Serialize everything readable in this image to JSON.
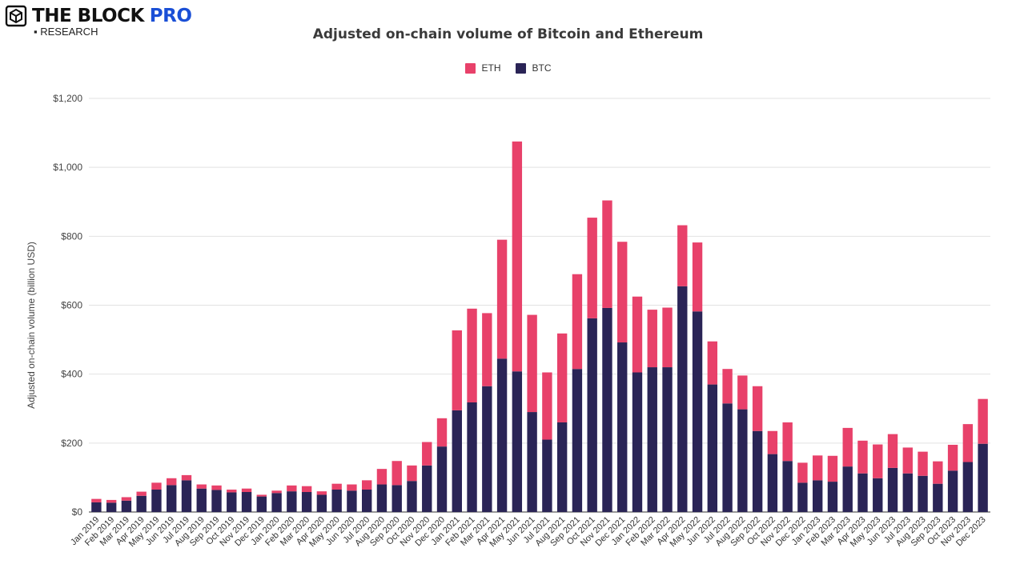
{
  "logo": {
    "name": "THE BLOCK",
    "pro": "PRO",
    "sub": "▪ RESEARCH",
    "icon": "cube-logo-icon"
  },
  "colors": {
    "eth": "#E8416A",
    "btc": "#2A2456",
    "grid": "#e2e2e2",
    "axis": "#333333"
  },
  "chart_data": {
    "type": "bar",
    "stacked": true,
    "title": "Adjusted on-chain volume of Bitcoin and Ethereum",
    "ylabel": "Adjusted on-chain volume (billion USD)",
    "xlabel": "",
    "ylim": [
      0,
      1200
    ],
    "yticks": [
      0,
      200,
      400,
      600,
      800,
      1000,
      1200
    ],
    "ytick_labels": [
      "$0",
      "$200",
      "$400",
      "$600",
      "$800",
      "$1,000",
      "$1,200"
    ],
    "grid": true,
    "legend_position": "top-center",
    "legend": [
      "ETH",
      "BTC"
    ],
    "categories": [
      "Jan 2019",
      "Feb 2019",
      "Mar 2019",
      "Apr 2019",
      "May 2019",
      "Jun 2019",
      "Jul 2019",
      "Aug 2019",
      "Sep 2019",
      "Oct 2019",
      "Nov 2019",
      "Dec 2019",
      "Jan 2020",
      "Feb 2020",
      "Mar 2020",
      "Apr 2020",
      "May 2020",
      "Jun 2020",
      "Jul 2020",
      "Aug 2020",
      "Sep 2020",
      "Oct 2020",
      "Nov 2020",
      "Dec 2020",
      "Jan 2021",
      "Feb 2021",
      "Mar 2021",
      "Apr 2021",
      "May 2021",
      "Jun 2021",
      "Jul 2021",
      "Aug 2021",
      "Sep 2021",
      "Oct 2021",
      "Nov 2021",
      "Dec 2021",
      "Jan 2022",
      "Feb 2022",
      "Mar 2022",
      "Apr 2022",
      "May 2022",
      "Jun 2022",
      "Jul 2022",
      "Aug 2022",
      "Sep 2022",
      "Oct 2022",
      "Nov 2022",
      "Dec 2022",
      "Jan 2023",
      "Feb 2023",
      "Mar 2023",
      "Apr 2023",
      "May 2023",
      "Jun 2023",
      "Jul 2023",
      "Aug 2023",
      "Sep 2023",
      "Oct 2023",
      "Nov 2023",
      "Dec 2023"
    ],
    "series": [
      {
        "name": "BTC",
        "values": [
          28,
          27,
          33,
          47,
          65,
          78,
          92,
          68,
          64,
          57,
          58,
          45,
          55,
          60,
          58,
          50,
          65,
          62,
          65,
          80,
          78,
          90,
          135,
          190,
          295,
          318,
          365,
          445,
          408,
          290,
          210,
          260,
          415,
          562,
          592,
          492,
          405,
          420,
          420,
          655,
          582,
          370,
          315,
          298,
          235,
          168,
          148,
          85,
          92,
          88,
          132,
          112,
          98,
          128,
          112,
          105,
          82,
          120,
          145,
          198
        ]
      },
      {
        "name": "ETH",
        "values": [
          10,
          8,
          10,
          12,
          20,
          20,
          15,
          12,
          13,
          8,
          10,
          5,
          7,
          17,
          17,
          10,
          17,
          18,
          27,
          45,
          70,
          45,
          68,
          82,
          232,
          272,
          212,
          345,
          667,
          282,
          195,
          258,
          275,
          292,
          312,
          292,
          220,
          167,
          173,
          177,
          200,
          125,
          100,
          98,
          130,
          67,
          112,
          58,
          72,
          75,
          112,
          95,
          98,
          98,
          75,
          70,
          65,
          75,
          110,
          130
        ]
      }
    ]
  }
}
